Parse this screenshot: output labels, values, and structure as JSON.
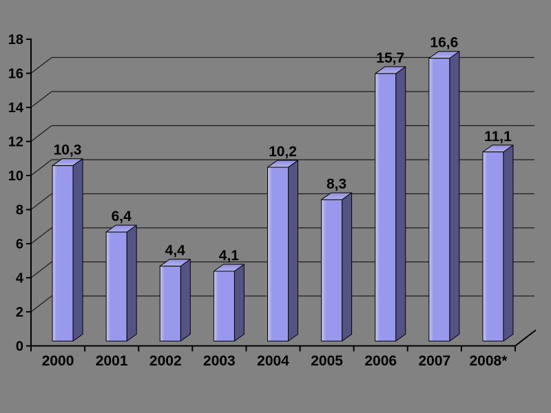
{
  "chart_data": {
    "type": "bar",
    "style": "3d-column",
    "title": "",
    "xlabel": "",
    "ylabel": "",
    "categories": [
      "2000",
      "2001",
      "2002",
      "2003",
      "2004",
      "2005",
      "2006",
      "2007",
      "2008*"
    ],
    "values": [
      10.3,
      6.4,
      4.4,
      4.1,
      10.2,
      8.3,
      15.7,
      16.6,
      11.1
    ],
    "value_labels": [
      "10,3",
      "6,4",
      "4,4",
      "4,1",
      "10,2",
      "8,3",
      "15,7",
      "16,6",
      "11,1"
    ],
    "ylim": [
      0,
      18
    ],
    "ytick_step": 2,
    "ytick_labels": [
      "0",
      "2",
      "4",
      "6",
      "8",
      "10",
      "12",
      "14",
      "16",
      "18"
    ],
    "grid": "horizontal-on-back-wall",
    "legend": "none",
    "colors": {
      "background": "#828282",
      "bar_front": "#9898ec",
      "bar_front_highlight": "#c6c6fa",
      "bar_top": "#9090dc",
      "bar_top_highlight": "#b0b0f0",
      "bar_side": "#535384",
      "outline": "#000000",
      "gridline": "#1c1c1c",
      "axis": "#000000",
      "label_text": "#000000"
    }
  }
}
